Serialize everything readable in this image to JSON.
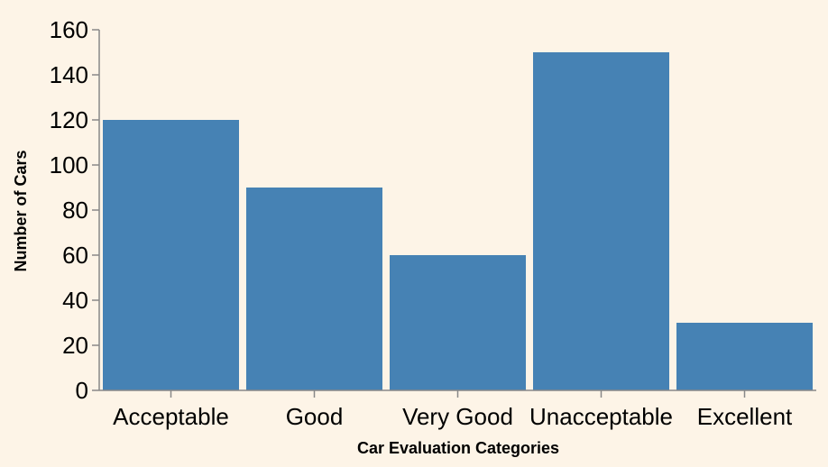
{
  "chart_data": {
    "type": "bar",
    "categories": [
      "Acceptable",
      "Good",
      "Very Good",
      "Unacceptable",
      "Excellent"
    ],
    "values": [
      120,
      90,
      60,
      150,
      30
    ],
    "title": "",
    "xlabel": "Car Evaluation Categories",
    "ylabel": "Number of Cars",
    "ylim": [
      0,
      160
    ],
    "yticks": [
      0,
      20,
      40,
      60,
      80,
      100,
      120,
      140,
      160
    ],
    "bar_color": "#4682b4",
    "background_color": "#fdf4e7",
    "grid": false,
    "legend": "none"
  }
}
